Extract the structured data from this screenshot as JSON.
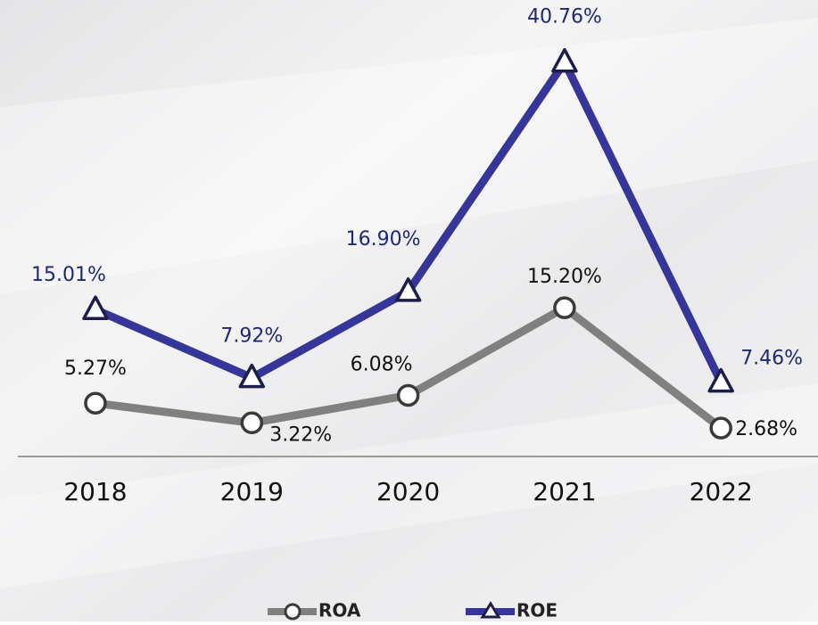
{
  "chart_data": {
    "type": "line",
    "categories": [
      "2018",
      "2019",
      "2020",
      "2021",
      "2022"
    ],
    "series": [
      {
        "name": "ROA",
        "color": "#808080",
        "marker": "circle",
        "label_color": "#111111",
        "values": [
          5.27,
          3.22,
          6.08,
          15.2,
          2.68
        ],
        "value_labels": [
          "5.27%",
          "3.22%",
          "6.08%",
          "15.20%",
          "2.68%"
        ]
      },
      {
        "name": "ROE",
        "color": "#35359a",
        "marker": "triangle",
        "label_color": "#1f2a6e",
        "values": [
          15.01,
          7.92,
          16.9,
          40.76,
          7.46
        ],
        "value_labels": [
          "15.01%",
          "7.92%",
          "16.90%",
          "40.76%",
          "7.46%"
        ]
      }
    ],
    "ylim": [
      0,
      45
    ]
  }
}
